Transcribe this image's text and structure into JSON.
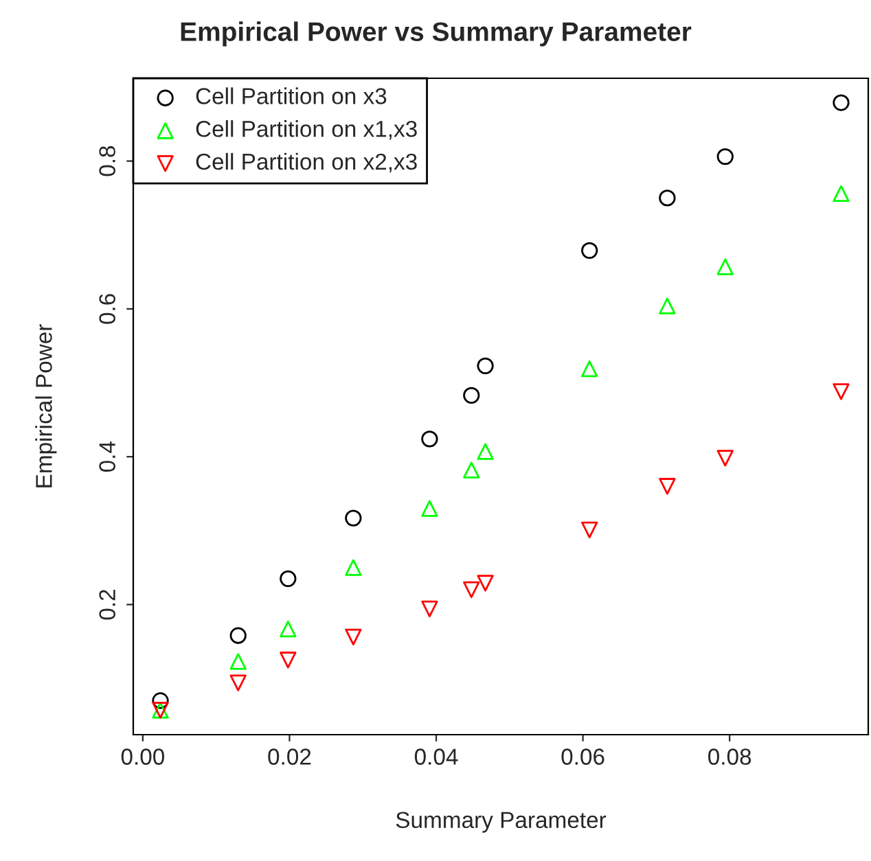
{
  "chart_data": {
    "type": "scatter",
    "title": "Empirical Power vs Summary Parameter",
    "xlabel": "Summary Parameter",
    "ylabel": "Empirical Power",
    "x": [
      0.0024,
      0.013,
      0.0198,
      0.0287,
      0.0391,
      0.0448,
      0.0467,
      0.0609,
      0.0715,
      0.0794,
      0.0952
    ],
    "series": [
      {
        "name": "Cell Partition on x3",
        "color": "#000000",
        "marker": "circle",
        "values": [
          0.07,
          0.158,
          0.235,
          0.317,
          0.424,
          0.483,
          0.523,
          0.679,
          0.75,
          0.806,
          0.879
        ]
      },
      {
        "name": "Cell Partition on x1,x3",
        "color": "#00ff00",
        "marker": "triangle",
        "values": [
          0.057,
          0.123,
          0.167,
          0.25,
          0.33,
          0.382,
          0.407,
          0.519,
          0.604,
          0.657,
          0.756
        ]
      },
      {
        "name": "Cell Partition on x2,x3",
        "color": "#ff0000",
        "marker": "triangle_down",
        "values": [
          0.057,
          0.094,
          0.125,
          0.156,
          0.194,
          0.22,
          0.229,
          0.301,
          0.36,
          0.398,
          0.488
        ]
      }
    ],
    "xlim": [
      -0.0013,
      0.0989
    ],
    "ylim": [
      0.024,
      0.912
    ],
    "xticks": [
      {
        "value": 0,
        "label": "0.00"
      },
      {
        "value": 0.02,
        "label": "0.02"
      },
      {
        "value": 0.04,
        "label": "0.04"
      },
      {
        "value": 0.06,
        "label": "0.06"
      },
      {
        "value": 0.08,
        "label": "0.08"
      }
    ],
    "yticks": [
      0.2,
      0.4,
      0.6,
      0.8
    ],
    "grid": false,
    "legend": "top left"
  }
}
